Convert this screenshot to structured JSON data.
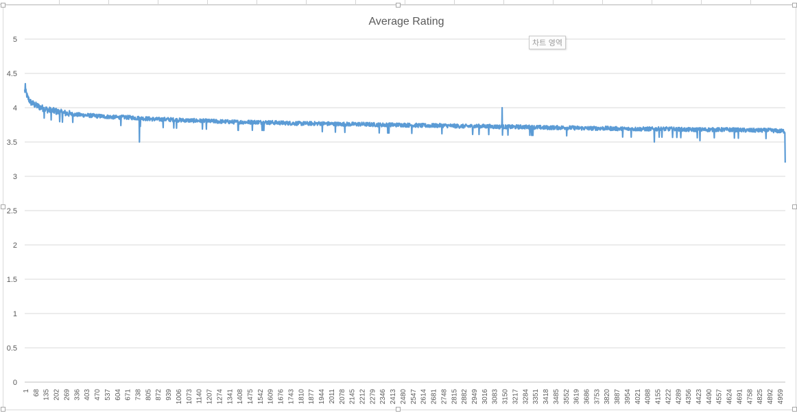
{
  "tooltip": "차트 영역",
  "chart_data": {
    "type": "line",
    "title": "Average Rating",
    "xlabel": "",
    "ylabel": "",
    "ylim": [
      0,
      5
    ],
    "yticks": [
      "0",
      "0.5",
      "1",
      "1.5",
      "2",
      "2.5",
      "3",
      "3.5",
      "4",
      "4.5",
      "5"
    ],
    "x_range": [
      1,
      5000
    ],
    "x_tick_labels": [
      "1",
      "68",
      "135",
      "202",
      "269",
      "336",
      "403",
      "470",
      "537",
      "604",
      "671",
      "738",
      "805",
      "872",
      "939",
      "1006",
      "1073",
      "1140",
      "1207",
      "1274",
      "1341",
      "1408",
      "1475",
      "1542",
      "1609",
      "1676",
      "1743",
      "1810",
      "1877",
      "1944",
      "2011",
      "2078",
      "2145",
      "2212",
      "2279",
      "2346",
      "2413",
      "2480",
      "2547",
      "2614",
      "2681",
      "2748",
      "2815",
      "2882",
      "2949",
      "3016",
      "3083",
      "3150",
      "3217",
      "3284",
      "3351",
      "3418",
      "3485",
      "3552",
      "3619",
      "3686",
      "3753",
      "3820",
      "3887",
      "3954",
      "4021",
      "4088",
      "4155",
      "4222",
      "4289",
      "4356",
      "4423",
      "4490",
      "4557",
      "4624",
      "4691",
      "4758",
      "4825",
      "4892",
      "4959"
    ],
    "grid": true,
    "legend": "none",
    "series": [
      {
        "color": "#5b9bd5",
        "x": [
          1,
          10,
          20,
          40,
          68,
          100,
          135,
          170,
          202,
          236,
          269,
          336,
          403,
          470,
          537,
          604,
          671,
          738,
          805,
          872,
          939,
          1006,
          1140,
          1274,
          1408,
          1542,
          1676,
          1810,
          1944,
          2078,
          2212,
          2346,
          2480,
          2614,
          2748,
          2882,
          3016,
          3150,
          3284,
          3418,
          3552,
          3686,
          3820,
          3954,
          4088,
          4222,
          4356,
          4490,
          4624,
          4758,
          4892,
          4959,
          4990,
          5000
        ],
        "values": [
          4.25,
          4.22,
          4.15,
          4.08,
          4.04,
          4.01,
          3.98,
          3.96,
          3.95,
          3.93,
          3.92,
          3.9,
          3.89,
          3.88,
          3.87,
          3.86,
          3.86,
          3.85,
          3.84,
          3.83,
          3.83,
          3.82,
          3.81,
          3.8,
          3.79,
          3.79,
          3.78,
          3.77,
          3.77,
          3.76,
          3.76,
          3.75,
          3.75,
          3.74,
          3.74,
          3.73,
          3.73,
          3.72,
          3.72,
          3.71,
          3.71,
          3.7,
          3.7,
          3.69,
          3.69,
          3.69,
          3.68,
          3.68,
          3.68,
          3.67,
          3.67,
          3.66,
          3.66,
          3.66
        ],
        "noise": 0.03,
        "spikes": [
          {
            "x": 5,
            "value": 4.35
          },
          {
            "x": 755,
            "value": 3.5
          },
          {
            "x": 3140,
            "value": 4.0
          },
          {
            "x": 4140,
            "value": 3.5
          },
          {
            "x": 4440,
            "value": 3.52
          },
          {
            "x": 5000,
            "value": 3.2
          }
        ]
      }
    ]
  }
}
